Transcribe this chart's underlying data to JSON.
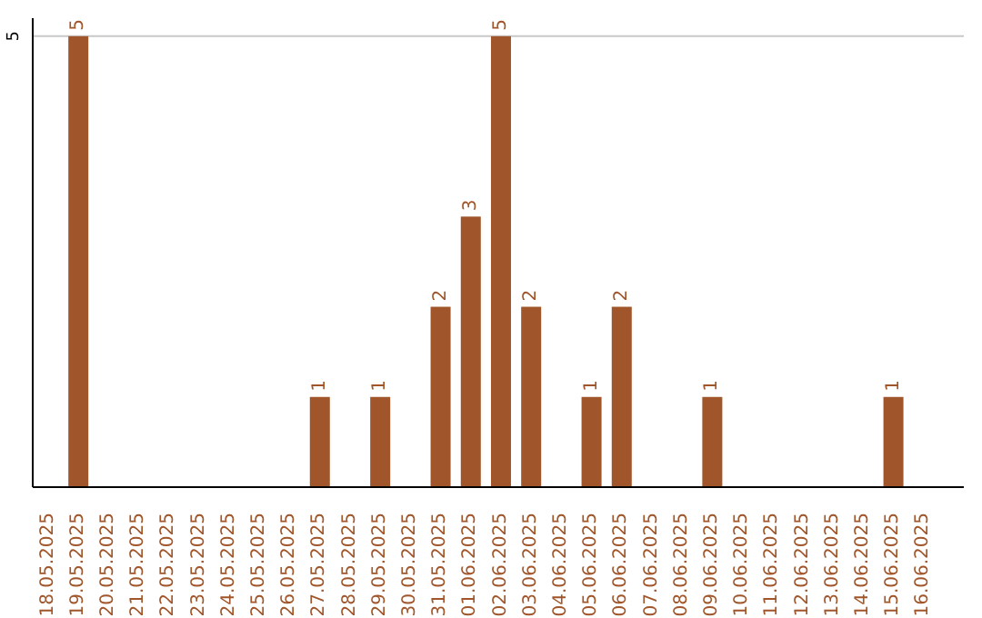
{
  "chart_data": {
    "type": "bar",
    "categories": [
      "18.05.2025",
      "19.05.2025",
      "20.05.2025",
      "21.05.2025",
      "22.05.2025",
      "23.05.2025",
      "24.05.2025",
      "25.05.2025",
      "26.05.2025",
      "27.05.2025",
      "28.05.2025",
      "29.05.2025",
      "30.05.2025",
      "31.05.2025",
      "01.06.2025",
      "02.06.2025",
      "03.06.2025",
      "04.06.2025",
      "05.06.2025",
      "06.06.2025",
      "07.06.2025",
      "08.06.2025",
      "09.06.2025",
      "10.06.2025",
      "11.06.2025",
      "12.06.2025",
      "13.06.2025",
      "14.06.2025",
      "15.06.2025",
      "16.06.2025"
    ],
    "values": [
      0,
      5,
      0,
      0,
      0,
      0,
      0,
      0,
      0,
      1,
      0,
      1,
      0,
      2,
      3,
      5,
      2,
      0,
      1,
      2,
      0,
      0,
      1,
      0,
      0,
      0,
      0,
      0,
      1,
      0
    ],
    "value_labels": [
      null,
      "5",
      null,
      null,
      null,
      null,
      null,
      null,
      null,
      "1",
      null,
      "1",
      null,
      "2",
      "3",
      "5",
      "2",
      null,
      "1",
      "2",
      null,
      null,
      "1",
      null,
      null,
      null,
      null,
      null,
      "1",
      null
    ],
    "color": "#a0562a",
    "ylim": [
      0,
      5.2
    ],
    "yticks": [
      5
    ],
    "grid": "y"
  }
}
